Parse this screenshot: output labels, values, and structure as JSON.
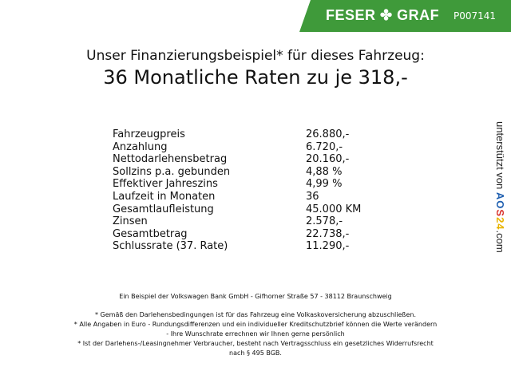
{
  "header": {
    "brand": "FESER ✤ GRAF",
    "code": "P007141",
    "brand_color": "#3f9a3a"
  },
  "title": "Unser Finanzierungsbeispiel* für dieses Fahrzeug:",
  "subtitle": "36 Monatliche Raten zu je 318,-",
  "rows": [
    {
      "label": "Fahrzeugpreis",
      "value": "26.880,-"
    },
    {
      "label": "Anzahlung",
      "value": "6.720,-"
    },
    {
      "label": "Nettodarlehensbetrag",
      "value": "20.160,-"
    },
    {
      "label": "Sollzins p.a. gebunden",
      "value": "4,88 %"
    },
    {
      "label": "Effektiver Jahreszins",
      "value": "4,99 %"
    },
    {
      "label": "Laufzeit in Monaten",
      "value": "36"
    },
    {
      "label": "Gesamtlaufleistung",
      "value": "45.000 KM"
    },
    {
      "label": "Zinsen",
      "value": "2.578,-"
    },
    {
      "label": "Gesamtbetrag",
      "value": "22.738,-"
    },
    {
      "label": "Schlussrate (37. Rate)",
      "value": "11.290,-"
    }
  ],
  "side": {
    "prefix": "unterstützt von ",
    "logo": "AOS24",
    ".com": ".com"
  },
  "footer": {
    "bank": "Ein Beispiel der Volkswagen Bank GmbH - Gifhorner Straße 57 - 38112 Braunschweig",
    "note1": "* Gemäß den Darlehensbedingungen ist für das Fahrzeug eine Volkaskoversicherung abzuschließen.",
    "note2a": "* Alle Angaben in Euro - Rundungsdifferenzen und ein individueller Kreditschutzbrief können die Werte verändern",
    "note2b": "- Ihre Wunschrate errechnen wir Ihnen gerne persönlich",
    "note3a": "* Ist der Darlehens-/Leasingnehmer Verbraucher, besteht nach Vertragsschluss ein gesetzliches Widerrufsrecht",
    "note3b": "nach § 495 BGB."
  }
}
